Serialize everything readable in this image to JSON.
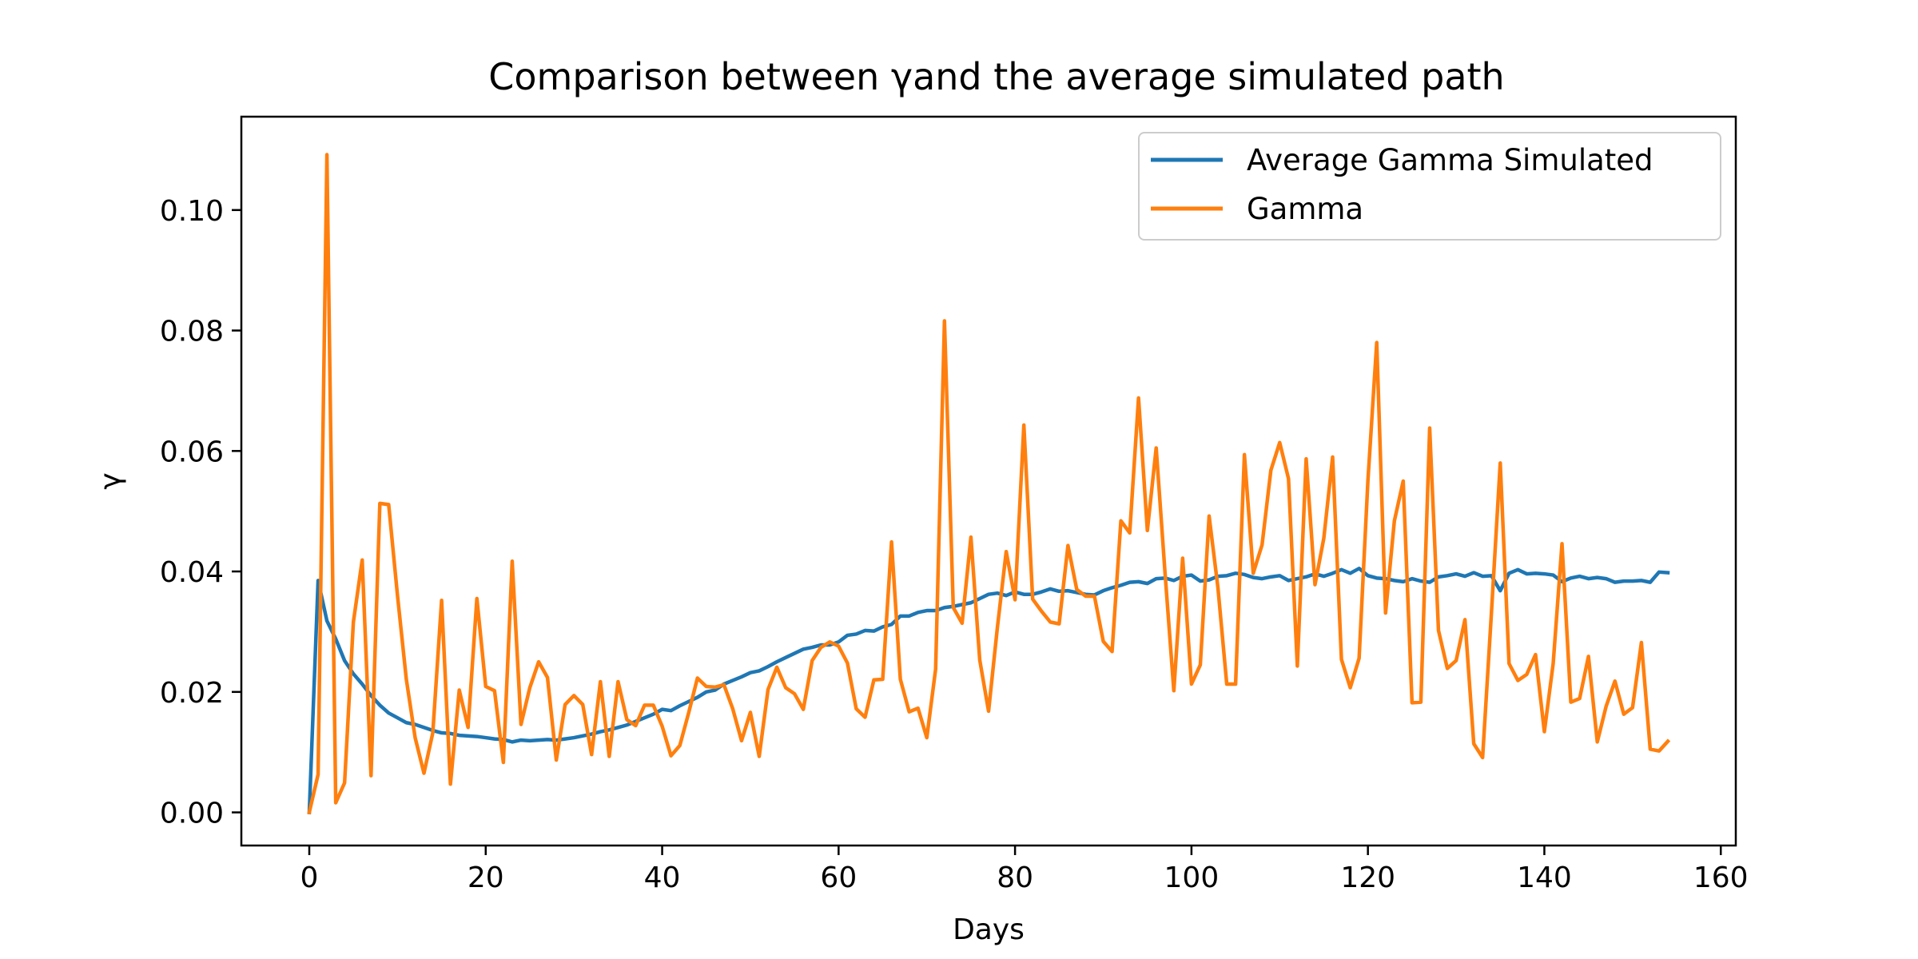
{
  "chart_data": {
    "type": "line",
    "title": "Comparison between γand the average simulated path",
    "xlabel": "Days",
    "ylabel": "γ",
    "xlim": [
      -7.7,
      161.7
    ],
    "ylim": [
      -0.0055,
      0.1155
    ],
    "xticks": [
      0,
      20,
      40,
      60,
      80,
      100,
      120,
      140,
      160
    ],
    "xtick_labels": [
      "0",
      "20",
      "40",
      "60",
      "80",
      "100",
      "120",
      "140",
      "160"
    ],
    "yticks": [
      0.0,
      0.02,
      0.04,
      0.06,
      0.08,
      0.1
    ],
    "ytick_labels": [
      "0.00",
      "0.02",
      "0.04",
      "0.06",
      "0.08",
      "0.10"
    ],
    "grid": false,
    "legend_position": "top-right",
    "series": [
      {
        "name": "Average Gamma Simulated",
        "color": "#1f77b4",
        "values": [
          0.0,
          0.0385,
          0.0318,
          0.0288,
          0.0252,
          0.023,
          0.0213,
          0.0194,
          0.0178,
          0.0165,
          0.0157,
          0.0149,
          0.0146,
          0.0141,
          0.0136,
          0.0132,
          0.0131,
          0.0128,
          0.0127,
          0.0126,
          0.0124,
          0.0122,
          0.0121,
          0.0117,
          0.012,
          0.0119,
          0.012,
          0.0121,
          0.012,
          0.0122,
          0.0124,
          0.0127,
          0.013,
          0.0134,
          0.0137,
          0.0141,
          0.0145,
          0.0151,
          0.0157,
          0.0163,
          0.0171,
          0.0169,
          0.0177,
          0.0184,
          0.0191,
          0.02,
          0.0203,
          0.0213,
          0.0219,
          0.0225,
          0.0232,
          0.0235,
          0.0242,
          0.025,
          0.0257,
          0.0264,
          0.0271,
          0.0274,
          0.0278,
          0.0278,
          0.0283,
          0.0294,
          0.0296,
          0.0302,
          0.0301,
          0.0308,
          0.0312,
          0.0326,
          0.0326,
          0.0332,
          0.0335,
          0.0335,
          0.034,
          0.0342,
          0.0345,
          0.0348,
          0.0355,
          0.0362,
          0.0364,
          0.036,
          0.0366,
          0.0362,
          0.0362,
          0.0366,
          0.0371,
          0.0367,
          0.0368,
          0.0365,
          0.0362,
          0.0361,
          0.0368,
          0.0373,
          0.0377,
          0.0382,
          0.0383,
          0.038,
          0.0388,
          0.0389,
          0.0385,
          0.0392,
          0.0394,
          0.0384,
          0.0386,
          0.0392,
          0.0393,
          0.0397,
          0.0395,
          0.039,
          0.0388,
          0.0391,
          0.0393,
          0.0385,
          0.0388,
          0.0391,
          0.0396,
          0.0392,
          0.0397,
          0.0403,
          0.0397,
          0.0405,
          0.0393,
          0.0389,
          0.0388,
          0.0385,
          0.0383,
          0.0388,
          0.0384,
          0.0382,
          0.0391,
          0.0393,
          0.0396,
          0.0392,
          0.0398,
          0.0392,
          0.0393,
          0.0368,
          0.0397,
          0.0403,
          0.0396,
          0.0397,
          0.0396,
          0.0394,
          0.0383,
          0.0389,
          0.0392,
          0.0388,
          0.039,
          0.0388,
          0.0382,
          0.0384,
          0.0384,
          0.0385,
          0.0382,
          0.0399,
          0.0398
        ]
      },
      {
        "name": "Gamma",
        "color": "#ff7f0e",
        "values": [
          0.0,
          0.0063,
          0.1092,
          0.0016,
          0.0049,
          0.0316,
          0.0419,
          0.0061,
          0.0513,
          0.0511,
          0.036,
          0.0221,
          0.0124,
          0.0065,
          0.0132,
          0.0352,
          0.0047,
          0.0203,
          0.0141,
          0.0355,
          0.0209,
          0.0202,
          0.0083,
          0.0417,
          0.0146,
          0.0207,
          0.025,
          0.0224,
          0.0087,
          0.0179,
          0.0194,
          0.0179,
          0.0096,
          0.0217,
          0.0093,
          0.0217,
          0.0154,
          0.0144,
          0.0178,
          0.0178,
          0.0143,
          0.0094,
          0.0111,
          0.0165,
          0.0223,
          0.0209,
          0.0208,
          0.0212,
          0.0172,
          0.0119,
          0.0166,
          0.0093,
          0.0204,
          0.0241,
          0.0207,
          0.0197,
          0.0171,
          0.0252,
          0.0274,
          0.0283,
          0.0276,
          0.0248,
          0.0172,
          0.0158,
          0.022,
          0.0221,
          0.0449,
          0.0221,
          0.0167,
          0.0173,
          0.0124,
          0.0238,
          0.0816,
          0.034,
          0.0314,
          0.0457,
          0.0253,
          0.0168,
          0.0307,
          0.0433,
          0.0353,
          0.0643,
          0.0354,
          0.0334,
          0.0316,
          0.0313,
          0.0443,
          0.037,
          0.0359,
          0.0359,
          0.0284,
          0.0267,
          0.0484,
          0.0464,
          0.0688,
          0.0468,
          0.0605,
          0.0398,
          0.0202,
          0.0422,
          0.0213,
          0.0245,
          0.0492,
          0.0373,
          0.0213,
          0.0213,
          0.0594,
          0.0397,
          0.0444,
          0.0568,
          0.0614,
          0.0554,
          0.0243,
          0.0587,
          0.0378,
          0.0455,
          0.059,
          0.0254,
          0.0207,
          0.0256,
          0.0551,
          0.078,
          0.0331,
          0.0484,
          0.055,
          0.0182,
          0.0183,
          0.0638,
          0.0302,
          0.0239,
          0.0252,
          0.032,
          0.0114,
          0.0091,
          0.0331,
          0.058,
          0.0247,
          0.0219,
          0.0229,
          0.0262,
          0.0134,
          0.0247,
          0.0446,
          0.0183,
          0.0189,
          0.0259,
          0.0117,
          0.0176,
          0.0218,
          0.0163,
          0.0174,
          0.0282,
          0.0105,
          0.0102,
          0.0118
        ]
      }
    ]
  }
}
